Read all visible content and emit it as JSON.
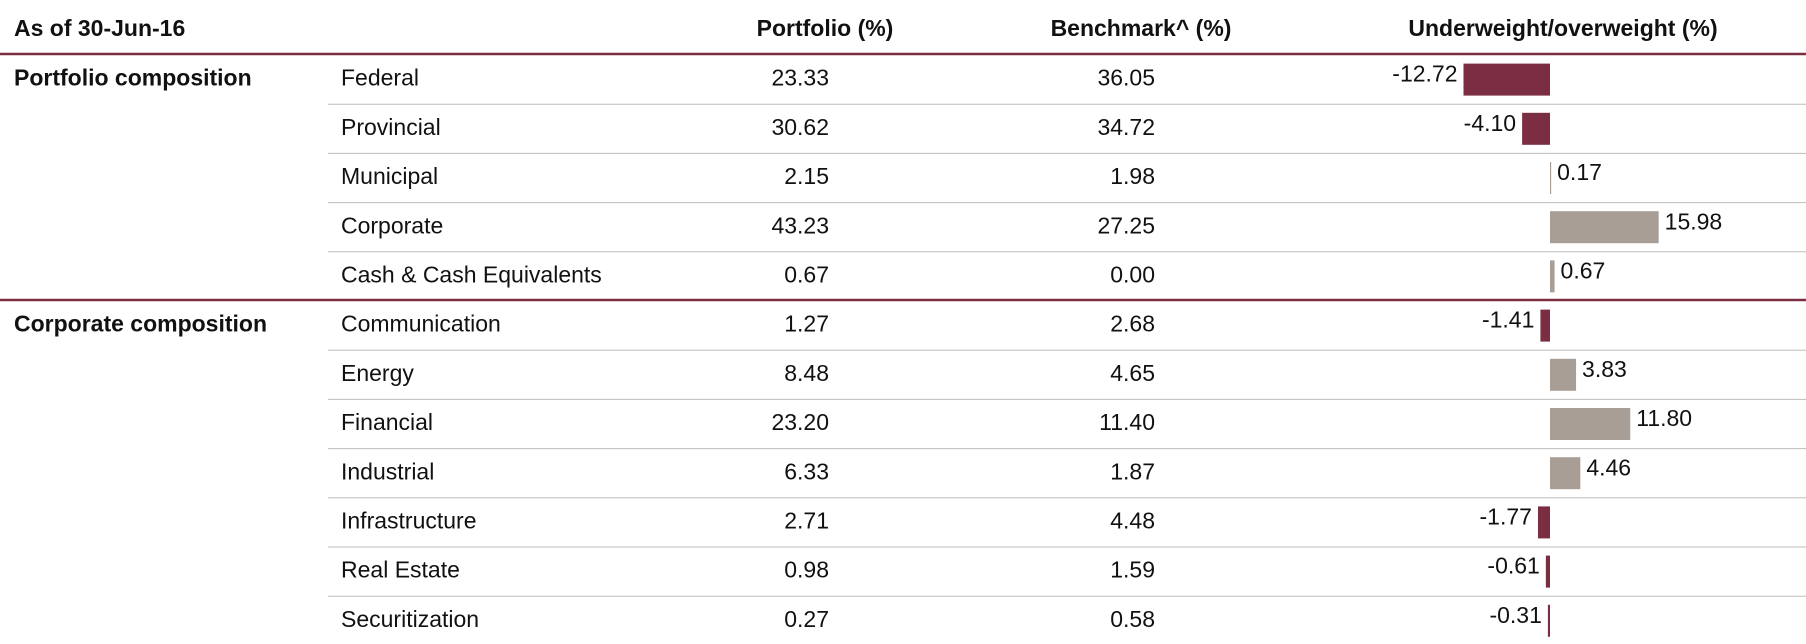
{
  "header": {
    "as_of": "As of 30-Jun-16",
    "columns": [
      "Portfolio (%)",
      "Benchmark^ (%)",
      "Underweight/overweight (%)"
    ]
  },
  "colors": {
    "negative": "#7b2d42",
    "positive": "#a89e95"
  },
  "groups": [
    {
      "name": "Portfolio composition",
      "rows": [
        {
          "label": "Federal",
          "portfolio": "23.33",
          "benchmark": "36.05",
          "diff": -12.72,
          "diff_label": "-12.72"
        },
        {
          "label": "Provincial",
          "portfolio": "30.62",
          "benchmark": "34.72",
          "diff": -4.1,
          "diff_label": "-4.10"
        },
        {
          "label": "Municipal",
          "portfolio": "2.15",
          "benchmark": "1.98",
          "diff": 0.17,
          "diff_label": "0.17"
        },
        {
          "label": "Corporate",
          "portfolio": "43.23",
          "benchmark": "27.25",
          "diff": 15.98,
          "diff_label": "15.98"
        },
        {
          "label": "Cash & Cash Equivalents",
          "portfolio": "0.67",
          "benchmark": "0.00",
          "diff": 0.67,
          "diff_label": "0.67"
        }
      ]
    },
    {
      "name": "Corporate composition",
      "rows": [
        {
          "label": "Communication",
          "portfolio": "1.27",
          "benchmark": "2.68",
          "diff": -1.41,
          "diff_label": "-1.41"
        },
        {
          "label": "Energy",
          "portfolio": "8.48",
          "benchmark": "4.65",
          "diff": 3.83,
          "diff_label": "3.83"
        },
        {
          "label": "Financial",
          "portfolio": "23.20",
          "benchmark": "11.40",
          "diff": 11.8,
          "diff_label": "11.80"
        },
        {
          "label": "Industrial",
          "portfolio": "6.33",
          "benchmark": "1.87",
          "diff": 4.46,
          "diff_label": "4.46"
        },
        {
          "label": "Infrastructure",
          "portfolio": "2.71",
          "benchmark": "4.48",
          "diff": -1.77,
          "diff_label": "-1.77"
        },
        {
          "label": "Real Estate",
          "portfolio": "0.98",
          "benchmark": "1.59",
          "diff": -0.61,
          "diff_label": "-0.61"
        },
        {
          "label": "Securitization",
          "portfolio": "0.27",
          "benchmark": "0.58",
          "diff": -0.31,
          "diff_label": "-0.31"
        }
      ]
    }
  ]
}
